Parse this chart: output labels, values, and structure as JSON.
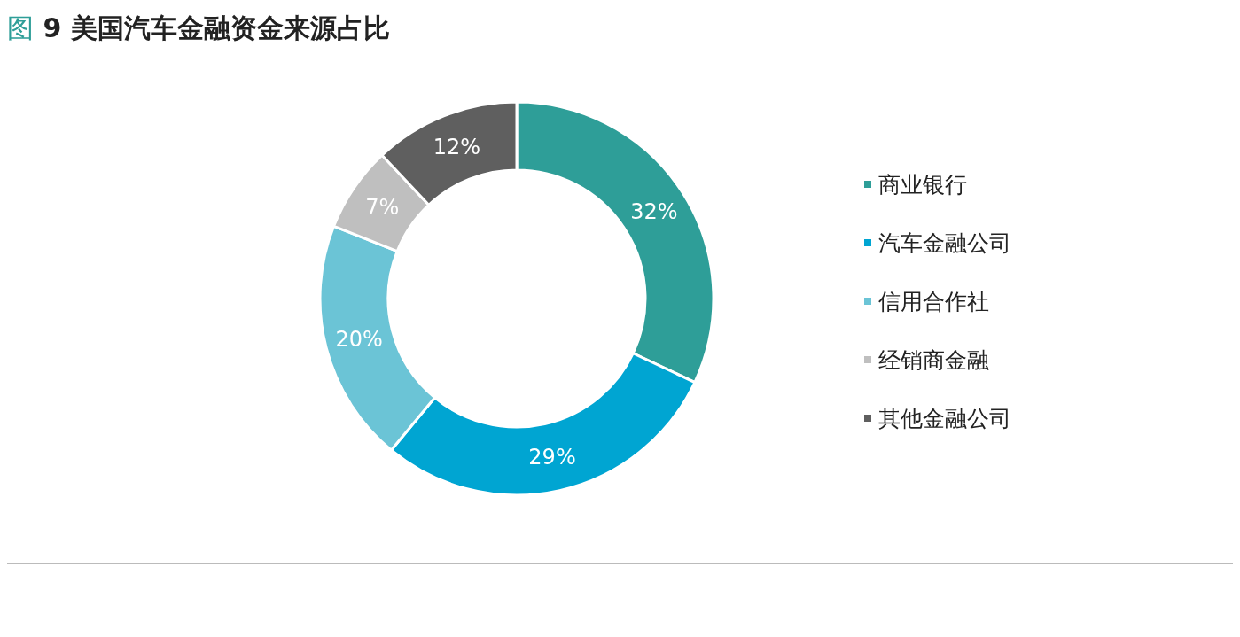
{
  "chart_data": {
    "type": "donut",
    "title": "图 9  美国汽车金融资金来源占比",
    "categories": [
      "商业银行",
      "汽车金融公司",
      "信用合作社",
      "经销商金融",
      "其他金融公司"
    ],
    "values": [
      32,
      29,
      20,
      7,
      12
    ],
    "colors": [
      "#2e9e98",
      "#00a5d2",
      "#6bc4d6",
      "#bfbfbf",
      "#5f5f5f"
    ],
    "value_labels": [
      "32%",
      "29%",
      "20%",
      "7%",
      "12%"
    ],
    "legend": "right"
  }
}
